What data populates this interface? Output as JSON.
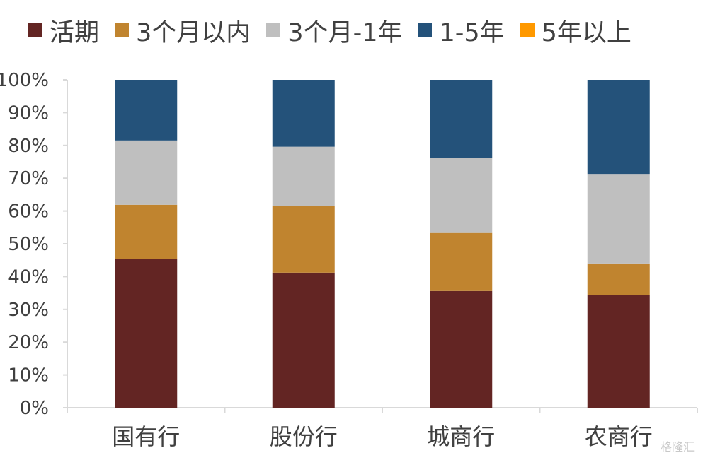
{
  "chart_data": {
    "type": "bar",
    "stacked": true,
    "categories": [
      "国有行",
      "股份行",
      "城商行",
      "农商行"
    ],
    "ylim": [
      0,
      100
    ],
    "yticks": [
      "0%",
      "10%",
      "20%",
      "30%",
      "40%",
      "50%",
      "60%",
      "70%",
      "80%",
      "90%",
      "100%"
    ],
    "legend_position": "top",
    "series": [
      {
        "name": "活期",
        "color": "#632523",
        "values": [
          45.3,
          41.2,
          35.6,
          34.3
        ]
      },
      {
        "name": "3个月以内",
        "color": "#C0842F",
        "values": [
          16.6,
          20.3,
          17.7,
          9.7
        ]
      },
      {
        "name": "3个月-1年",
        "color": "#BFBFBF",
        "values": [
          19.6,
          18.1,
          22.8,
          27.3
        ]
      },
      {
        "name": "1-5年",
        "color": "#24527A",
        "values": [
          18.5,
          20.4,
          23.9,
          28.7
        ]
      },
      {
        "name": "5年以上",
        "color": "#FF9900",
        "values": [
          0,
          0,
          0,
          0
        ]
      }
    ]
  },
  "watermark": "格隆汇"
}
